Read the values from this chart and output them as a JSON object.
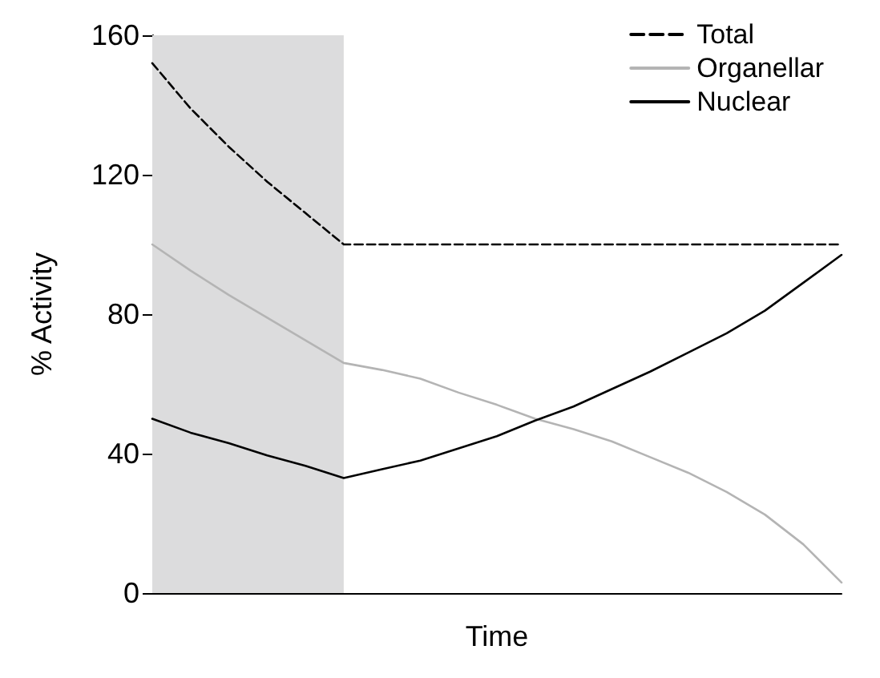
{
  "chart_data": {
    "type": "line",
    "xlabel": "Time",
    "ylabel": "% Activity",
    "categories": [
      null,
      null,
      null,
      null,
      null,
      null,
      null,
      null,
      null,
      null,
      null,
      null,
      null,
      null,
      null,
      null,
      null,
      null,
      null
    ],
    "ylim": [
      0,
      160
    ],
    "yticks": [
      0,
      40,
      80,
      120,
      160
    ],
    "grid": false,
    "legend": "top right",
    "marker": "none",
    "series": [
      {
        "name": "Total",
        "color": "#000000",
        "line_style": "dashed",
        "values": [
          152,
          139,
          128,
          118,
          109,
          100,
          100,
          100,
          100,
          100,
          100,
          100,
          100,
          100,
          100,
          100,
          100,
          100,
          100
        ]
      },
      {
        "name": "Organellar",
        "color": "#b4b4b4",
        "line_style": "solid",
        "values": [
          100,
          92.5,
          85.5,
          79,
          72.5,
          66,
          64,
          61.5,
          57.5,
          54,
          50,
          47,
          43.5,
          39,
          34.5,
          29,
          22.5,
          14,
          3
        ]
      },
      {
        "name": "Nuclear",
        "color": "#000000",
        "line_style": "solid",
        "values": [
          50,
          46,
          43,
          39.5,
          36.5,
          33,
          35.5,
          38,
          41.5,
          45,
          49.5,
          53.5,
          58.5,
          63.5,
          69,
          74.5,
          81,
          89,
          97
        ]
      }
    ]
  }
}
